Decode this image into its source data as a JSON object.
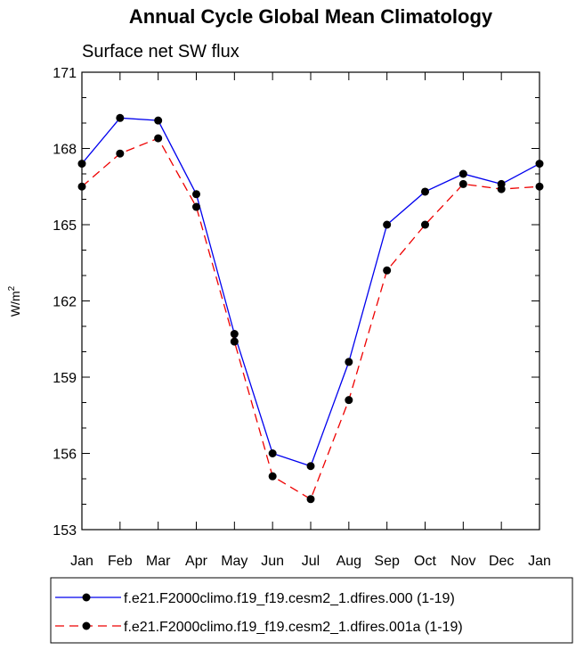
{
  "chart_data": {
    "type": "line",
    "title": "Annual Cycle Global Mean Climatology",
    "subtitle": "Surface net SW flux",
    "xlabel": "",
    "ylabel": "W/m",
    "ylabel_sup": "2",
    "ylim": [
      153,
      171
    ],
    "yticks": [
      "153",
      "156",
      "159",
      "162",
      "165",
      "168",
      "171"
    ],
    "categories": [
      "Jan",
      "Feb",
      "Mar",
      "Apr",
      "May",
      "Jun",
      "Jul",
      "Aug",
      "Sep",
      "Oct",
      "Nov",
      "Dec",
      "Jan"
    ],
    "series": [
      {
        "name": "f.e21.F2000climo.f19_f19.cesm2_1.dfires.000 (1-19)",
        "color": "#0000ee",
        "dash": "solid",
        "values": [
          167.4,
          169.2,
          169.1,
          166.2,
          160.7,
          156.0,
          155.5,
          159.6,
          165.0,
          166.3,
          167.0,
          166.6,
          167.4
        ]
      },
      {
        "name": "f.e21.F2000climo.f19_f19.cesm2_1.dfires.001a (1-19)",
        "color": "#ee0000",
        "dash": "dashed",
        "values": [
          166.5,
          167.8,
          168.4,
          165.7,
          160.4,
          155.1,
          154.2,
          158.1,
          163.2,
          165.0,
          166.6,
          166.4,
          166.5
        ]
      }
    ],
    "legend_position": "bottom"
  }
}
